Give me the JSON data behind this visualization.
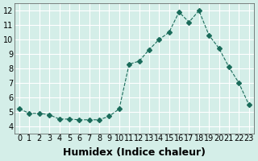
{
  "x": [
    0,
    1,
    2,
    3,
    4,
    5,
    6,
    7,
    8,
    9,
    10,
    11,
    12,
    13,
    14,
    15,
    16,
    17,
    18,
    19,
    20,
    21,
    22,
    23
  ],
  "y": [
    5.2,
    4.9,
    4.9,
    4.8,
    4.5,
    4.5,
    4.45,
    4.45,
    4.45,
    4.7,
    5.2,
    8.3,
    8.5,
    9.3,
    10.0,
    10.5,
    11.9,
    11.2,
    12.0,
    10.3,
    9.4,
    8.1,
    7.0,
    5.5
  ],
  "xlabel": "Humidex (Indice chaleur)",
  "ylabel": "",
  "xlim": [
    -0.5,
    23.5
  ],
  "ylim": [
    3.5,
    12.5
  ],
  "yticks": [
    4,
    5,
    6,
    7,
    8,
    9,
    10,
    11,
    12
  ],
  "xticks": [
    0,
    1,
    2,
    3,
    4,
    5,
    6,
    7,
    8,
    9,
    10,
    11,
    12,
    13,
    14,
    15,
    16,
    17,
    18,
    19,
    20,
    21,
    22,
    23
  ],
  "line_color": "#1a6b5a",
  "marker": "D",
  "marker_size": 3,
  "line_width": 0.8,
  "background_color": "#d4eee8",
  "grid_color": "#ffffff",
  "xlabel_fontsize": 9,
  "tick_fontsize": 7
}
